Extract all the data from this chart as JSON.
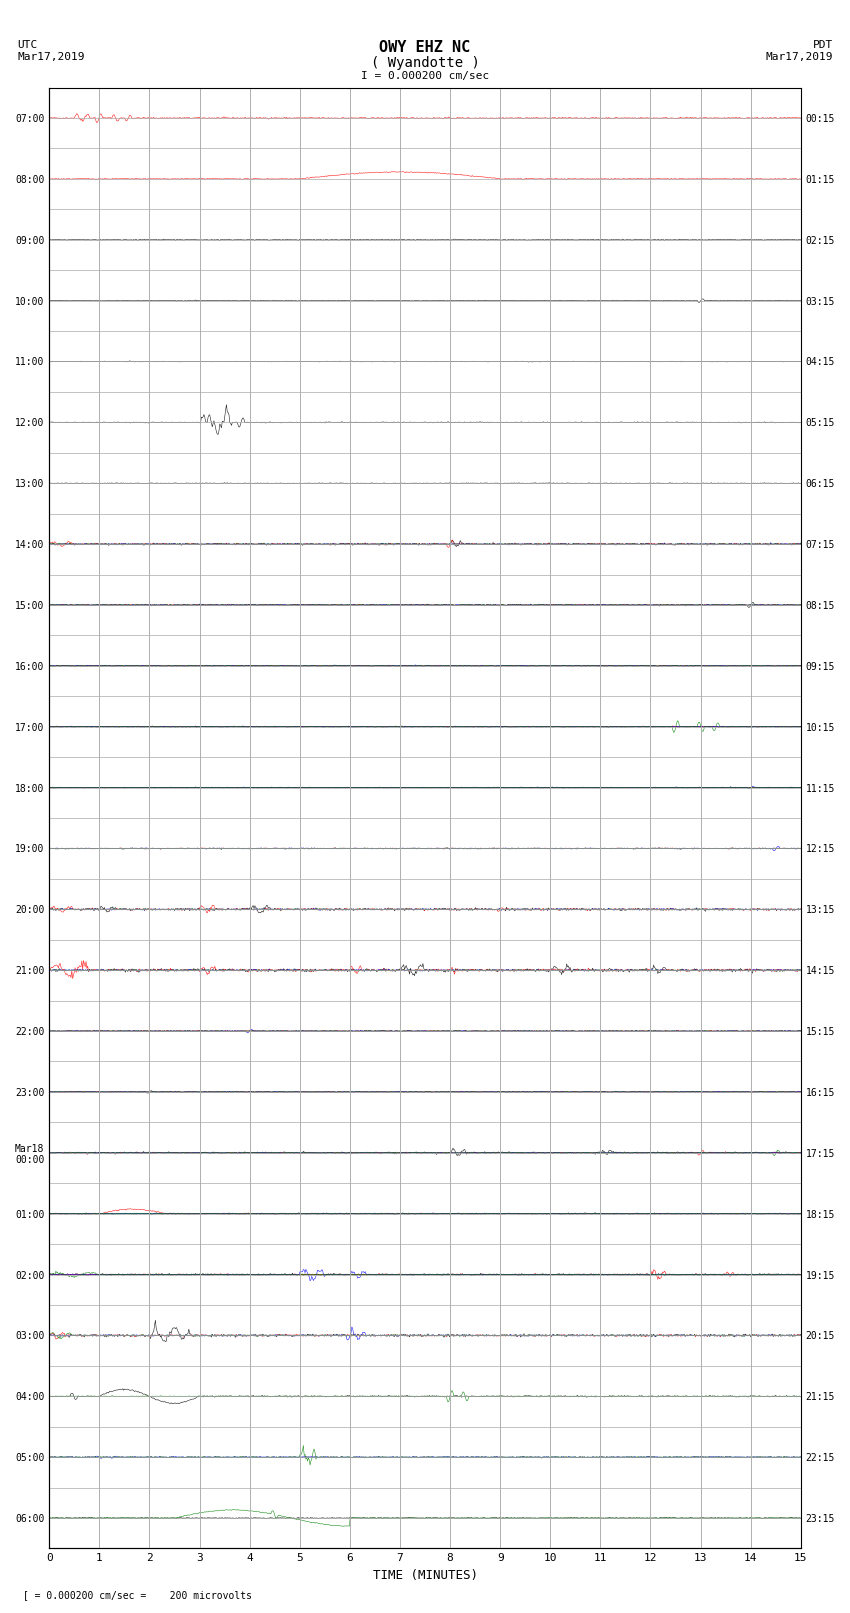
{
  "title_line1": "OWY EHZ NC",
  "title_line2": "( Wyandotte )",
  "scale_label": "I = 0.000200 cm/sec",
  "bottom_label": "TIME (MINUTES)",
  "xlabel_ticks": [
    0,
    1,
    2,
    3,
    4,
    5,
    6,
    7,
    8,
    9,
    10,
    11,
    12,
    13,
    14,
    15
  ],
  "xmin": 0,
  "xmax": 15,
  "num_rows": 24,
  "row_labels_left": [
    "07:00",
    "08:00",
    "09:00",
    "10:00",
    "11:00",
    "12:00",
    "13:00",
    "14:00",
    "15:00",
    "16:00",
    "17:00",
    "18:00",
    "19:00",
    "20:00",
    "21:00",
    "22:00",
    "23:00",
    "Mar18\n00:00",
    "01:00",
    "02:00",
    "03:00",
    "04:00",
    "05:00",
    "06:00"
  ],
  "row_labels_right": [
    "00:15",
    "01:15",
    "02:15",
    "03:15",
    "04:15",
    "05:15",
    "06:15",
    "07:15",
    "08:15",
    "09:15",
    "10:15",
    "11:15",
    "12:15",
    "13:15",
    "14:15",
    "15:15",
    "16:15",
    "17:15",
    "18:15",
    "19:15",
    "20:15",
    "21:15",
    "22:15",
    "23:15"
  ],
  "bg_color": "#ffffff",
  "grid_color": "#aaaaaa",
  "trace_colors": {
    "black": "#000000",
    "red": "#ff0000",
    "blue": "#0000ff",
    "green": "#008000"
  }
}
